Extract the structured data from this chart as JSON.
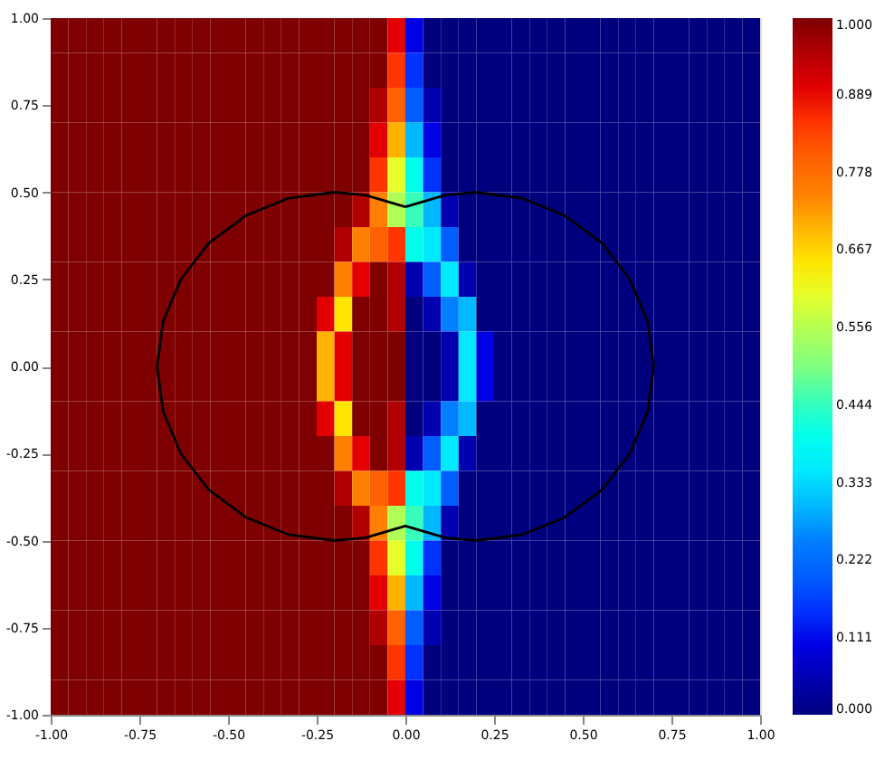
{
  "chart_data": {
    "type": "heatmap",
    "xlim": [
      -1,
      1
    ],
    "ylim": [
      -1,
      1
    ],
    "xticks": [
      {
        "value": -1,
        "label": "-1.00"
      },
      {
        "value": -0.75,
        "label": "-0.75"
      },
      {
        "value": -0.5,
        "label": "-0.50"
      },
      {
        "value": -0.25,
        "label": "-0.25"
      },
      {
        "value": 0,
        "label": "0.00"
      },
      {
        "value": 0.25,
        "label": "0.25"
      },
      {
        "value": 0.5,
        "label": "0.50"
      },
      {
        "value": 0.75,
        "label": "0.75"
      },
      {
        "value": 1,
        "label": "1.00"
      }
    ],
    "yticks": [
      {
        "value": -1,
        "label": "-1.00"
      },
      {
        "value": -0.75,
        "label": "-0.75"
      },
      {
        "value": -0.5,
        "label": "-0.50"
      },
      {
        "value": -0.25,
        "label": "-0.25"
      },
      {
        "value": 0,
        "label": "0.00"
      },
      {
        "value": 0.25,
        "label": "0.25"
      },
      {
        "value": 0.5,
        "label": "0.50"
      },
      {
        "value": 0.75,
        "label": "0.75"
      },
      {
        "value": 1,
        "label": "1.00"
      }
    ],
    "clim": [
      0,
      1
    ],
    "cticks": [
      {
        "value": 0,
        "label": "0.000"
      },
      {
        "value": 0.111,
        "label": "0.111"
      },
      {
        "value": 0.222,
        "label": "0.222"
      },
      {
        "value": 0.333,
        "label": "0.333"
      },
      {
        "value": 0.444,
        "label": "0.444"
      },
      {
        "value": 0.556,
        "label": "0.556"
      },
      {
        "value": 0.667,
        "label": "0.667"
      },
      {
        "value": 0.778,
        "label": "0.778"
      },
      {
        "value": 0.889,
        "label": "0.889"
      },
      {
        "value": 1,
        "label": "1.000"
      }
    ],
    "cells": [
      [
        1,
        1,
        1,
        1,
        1,
        1,
        1,
        1,
        1,
        1,
        1,
        1,
        1,
        1,
        1,
        1,
        1,
        1,
        1,
        0.9,
        0.1,
        0,
        0,
        0,
        0,
        0,
        0,
        0,
        0,
        0,
        0,
        0,
        0,
        0,
        0,
        0,
        0,
        0,
        0,
        0
      ],
      [
        1,
        1,
        1,
        1,
        1,
        1,
        1,
        1,
        1,
        1,
        1,
        1,
        1,
        1,
        1,
        1,
        1,
        1,
        1,
        0.85,
        0.15,
        0,
        0,
        0,
        0,
        0,
        0,
        0,
        0,
        0,
        0,
        0,
        0,
        0,
        0,
        0,
        0,
        0,
        0,
        0
      ],
      [
        1,
        1,
        1,
        1,
        1,
        1,
        1,
        1,
        1,
        1,
        1,
        1,
        1,
        1,
        1,
        1,
        1,
        1,
        0.95,
        0.8,
        0.2,
        0.05,
        0,
        0,
        0,
        0,
        0,
        0,
        0,
        0,
        0,
        0,
        0,
        0,
        0,
        0,
        0,
        0,
        0,
        0
      ],
      [
        1,
        1,
        1,
        1,
        1,
        1,
        1,
        1,
        1,
        1,
        1,
        1,
        1,
        1,
        1,
        1,
        1,
        1,
        0.9,
        0.7,
        0.3,
        0.1,
        0,
        0,
        0,
        0,
        0,
        0,
        0,
        0,
        0,
        0,
        0,
        0,
        0,
        0,
        0,
        0,
        0,
        0
      ],
      [
        1,
        1,
        1,
        1,
        1,
        1,
        1,
        1,
        1,
        1,
        1,
        1,
        1,
        1,
        1,
        1,
        1,
        1,
        0.85,
        0.6,
        0.4,
        0.15,
        0,
        0,
        0,
        0,
        0,
        0,
        0,
        0,
        0,
        0,
        0,
        0,
        0,
        0,
        0,
        0,
        0,
        0
      ],
      [
        1,
        1,
        1,
        1,
        1,
        1,
        1,
        1,
        1,
        1,
        1,
        1,
        1,
        1,
        1,
        1,
        1,
        0.95,
        0.75,
        0.55,
        0.45,
        0.3,
        0.05,
        0,
        0,
        0,
        0,
        0,
        0,
        0,
        0,
        0,
        0,
        0,
        0,
        0,
        0,
        0,
        0,
        0
      ],
      [
        1,
        1,
        1,
        1,
        1,
        1,
        1,
        1,
        1,
        1,
        1,
        1,
        1,
        1,
        1,
        1,
        0.95,
        0.75,
        0.8,
        0.85,
        0.4,
        0.35,
        0.2,
        0,
        0,
        0,
        0,
        0,
        0,
        0,
        0,
        0,
        0,
        0,
        0,
        0,
        0,
        0,
        0,
        0
      ],
      [
        1,
        1,
        1,
        1,
        1,
        1,
        1,
        1,
        1,
        1,
        1,
        1,
        1,
        1,
        1,
        1,
        0.75,
        0.9,
        1,
        0.95,
        0.05,
        0.2,
        0.35,
        0.05,
        0,
        0,
        0,
        0,
        0,
        0,
        0,
        0,
        0,
        0,
        0,
        0,
        0,
        0,
        0,
        0
      ],
      [
        1,
        1,
        1,
        1,
        1,
        1,
        1,
        1,
        1,
        1,
        1,
        1,
        1,
        1,
        1,
        0.9,
        0.65,
        1,
        1,
        0.95,
        0,
        0.05,
        0.25,
        0.3,
        0,
        0,
        0,
        0,
        0,
        0,
        0,
        0,
        0,
        0,
        0,
        0,
        0,
        0,
        0,
        0
      ],
      [
        1,
        1,
        1,
        1,
        1,
        1,
        1,
        1,
        1,
        1,
        1,
        1,
        1,
        1,
        1,
        0.7,
        0.9,
        1,
        1,
        1,
        0,
        0,
        0.05,
        0.35,
        0.1,
        0,
        0,
        0,
        0,
        0,
        0,
        0,
        0,
        0,
        0,
        0,
        0,
        0,
        0,
        0
      ],
      [
        1,
        1,
        1,
        1,
        1,
        1,
        1,
        1,
        1,
        1,
        1,
        1,
        1,
        1,
        1,
        0.7,
        0.9,
        1,
        1,
        1,
        0,
        0,
        0.05,
        0.35,
        0.1,
        0,
        0,
        0,
        0,
        0,
        0,
        0,
        0,
        0,
        0,
        0,
        0,
        0,
        0,
        0
      ],
      [
        1,
        1,
        1,
        1,
        1,
        1,
        1,
        1,
        1,
        1,
        1,
        1,
        1,
        1,
        1,
        0.9,
        0.65,
        1,
        1,
        0.95,
        0,
        0.05,
        0.25,
        0.3,
        0,
        0,
        0,
        0,
        0,
        0,
        0,
        0,
        0,
        0,
        0,
        0,
        0,
        0,
        0,
        0
      ],
      [
        1,
        1,
        1,
        1,
        1,
        1,
        1,
        1,
        1,
        1,
        1,
        1,
        1,
        1,
        1,
        1,
        0.75,
        0.9,
        1,
        0.95,
        0.05,
        0.2,
        0.35,
        0.05,
        0,
        0,
        0,
        0,
        0,
        0,
        0,
        0,
        0,
        0,
        0,
        0,
        0,
        0,
        0,
        0
      ],
      [
        1,
        1,
        1,
        1,
        1,
        1,
        1,
        1,
        1,
        1,
        1,
        1,
        1,
        1,
        1,
        1,
        0.95,
        0.75,
        0.8,
        0.85,
        0.4,
        0.35,
        0.2,
        0,
        0,
        0,
        0,
        0,
        0,
        0,
        0,
        0,
        0,
        0,
        0,
        0,
        0,
        0,
        0,
        0
      ],
      [
        1,
        1,
        1,
        1,
        1,
        1,
        1,
        1,
        1,
        1,
        1,
        1,
        1,
        1,
        1,
        1,
        1,
        0.95,
        0.75,
        0.55,
        0.45,
        0.3,
        0.05,
        0,
        0,
        0,
        0,
        0,
        0,
        0,
        0,
        0,
        0,
        0,
        0,
        0,
        0,
        0,
        0,
        0
      ],
      [
        1,
        1,
        1,
        1,
        1,
        1,
        1,
        1,
        1,
        1,
        1,
        1,
        1,
        1,
        1,
        1,
        1,
        1,
        0.85,
        0.6,
        0.4,
        0.15,
        0,
        0,
        0,
        0,
        0,
        0,
        0,
        0,
        0,
        0,
        0,
        0,
        0,
        0,
        0,
        0,
        0,
        0
      ],
      [
        1,
        1,
        1,
        1,
        1,
        1,
        1,
        1,
        1,
        1,
        1,
        1,
        1,
        1,
        1,
        1,
        1,
        1,
        0.9,
        0.7,
        0.3,
        0.1,
        0,
        0,
        0,
        0,
        0,
        0,
        0,
        0,
        0,
        0,
        0,
        0,
        0,
        0,
        0,
        0,
        0,
        0
      ],
      [
        1,
        1,
        1,
        1,
        1,
        1,
        1,
        1,
        1,
        1,
        1,
        1,
        1,
        1,
        1,
        1,
        1,
        1,
        0.95,
        0.8,
        0.2,
        0.05,
        0,
        0,
        0,
        0,
        0,
        0,
        0,
        0,
        0,
        0,
        0,
        0,
        0,
        0,
        0,
        0,
        0,
        0
      ],
      [
        1,
        1,
        1,
        1,
        1,
        1,
        1,
        1,
        1,
        1,
        1,
        1,
        1,
        1,
        1,
        1,
        1,
        1,
        1,
        0.85,
        0.15,
        0,
        0,
        0,
        0,
        0,
        0,
        0,
        0,
        0,
        0,
        0,
        0,
        0,
        0,
        0,
        0,
        0,
        0,
        0
      ],
      [
        1,
        1,
        1,
        1,
        1,
        1,
        1,
        1,
        1,
        1,
        1,
        1,
        1,
        1,
        1,
        1,
        1,
        1,
        1,
        0.9,
        0.1,
        0,
        0,
        0,
        0,
        0,
        0,
        0,
        0,
        0,
        0,
        0,
        0,
        0,
        0,
        0,
        0,
        0,
        0,
        0
      ]
    ],
    "tick_labels": true
  }
}
